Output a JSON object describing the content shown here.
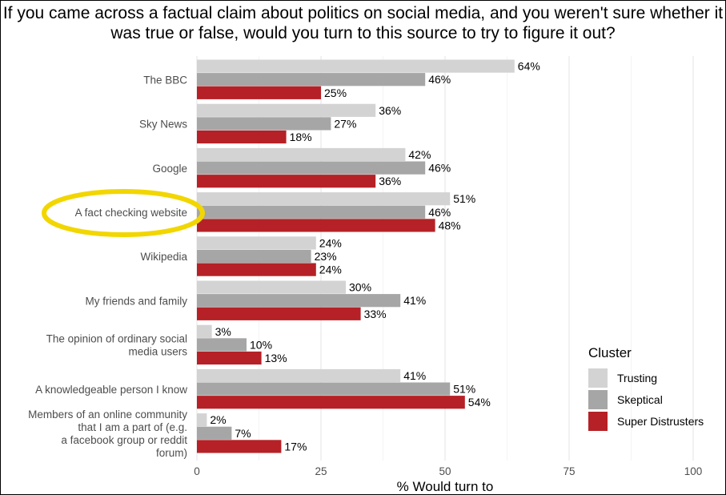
{
  "chart_data": {
    "type": "bar",
    "orientation": "horizontal",
    "title": "If you came across a factual claim about politics on social media, and you weren't sure whether it was true or false, would you turn to this source to try to figure it out?",
    "xlabel": "% Would turn to",
    "ylabel": "",
    "xlim": [
      0,
      100
    ],
    "xticks": [
      0,
      25,
      50,
      75,
      100
    ],
    "grid": true,
    "legend": {
      "title": "Cluster",
      "placement": "right"
    },
    "categories": [
      [
        "The BBC"
      ],
      [
        "Sky News"
      ],
      [
        "Google"
      ],
      [
        "A fact checking website"
      ],
      [
        "Wikipedia"
      ],
      [
        "My friends and family"
      ],
      [
        "The opinion of ordinary social",
        "media users"
      ],
      [
        "A knowledgeable person I know"
      ],
      [
        "Members of an online community",
        "that I am a part of (e.g.",
        "a facebook group or reddit",
        "forum)"
      ]
    ],
    "highlighted_category": 3,
    "series": [
      {
        "name": "Trusting",
        "color": "#d3d3d3",
        "values": [
          64,
          36,
          42,
          51,
          24,
          30,
          3,
          41,
          2
        ]
      },
      {
        "name": "Skeptical",
        "color": "#a6a6a6",
        "values": [
          46,
          27,
          46,
          46,
          23,
          41,
          10,
          51,
          7
        ]
      },
      {
        "name": "Super Distrusters",
        "color": "#b52126",
        "values": [
          25,
          18,
          36,
          48,
          24,
          33,
          13,
          54,
          17
        ]
      }
    ],
    "value_suffix": "%",
    "highlight_color": "#f2d600"
  }
}
